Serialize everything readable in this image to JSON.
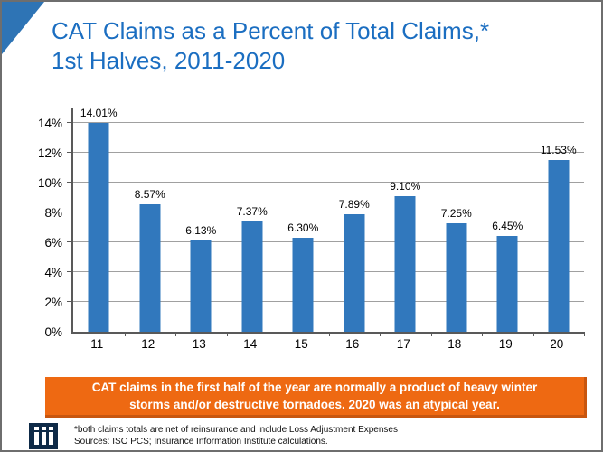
{
  "title": {
    "line1": "CAT Claims as a Percent of Total Claims,*",
    "line2": "1st Halves, 2011-2020"
  },
  "chart_data": {
    "type": "bar",
    "title": "CAT Claims as a Percent of Total Claims,* 1st Halves, 2011-2020",
    "categories": [
      "11",
      "12",
      "13",
      "14",
      "15",
      "16",
      "17",
      "18",
      "19",
      "20"
    ],
    "values": [
      14.01,
      8.57,
      6.13,
      7.37,
      6.3,
      7.89,
      9.1,
      7.25,
      6.45,
      11.53
    ],
    "labels": [
      "14.01%",
      "8.57%",
      "6.13%",
      "7.37%",
      "6.30%",
      "7.89%",
      "9.10%",
      "7.25%",
      "6.45%",
      "11.53%"
    ],
    "xlabel": "",
    "ylabel": "",
    "ylim": [
      0,
      14
    ],
    "grid": true,
    "legend": false,
    "yticks": [
      {
        "value": 0,
        "label": "0%"
      },
      {
        "value": 2,
        "label": "2%"
      },
      {
        "value": 4,
        "label": "4%"
      },
      {
        "value": 6,
        "label": "6%"
      },
      {
        "value": 8,
        "label": "8%"
      },
      {
        "value": 10,
        "label": "10%"
      },
      {
        "value": 12,
        "label": "12%"
      },
      {
        "value": 14,
        "label": "14%"
      }
    ]
  },
  "banner": {
    "line1": "CAT claims in the first half of the year are normally a product of heavy winter",
    "line2": "storms and/or destructive tornadoes. 2020 was an atypical year."
  },
  "footer": {
    "note": "*both claims totals are net of reinsurance and include Loss Adjustment Expenses",
    "sources": "Sources: ISO PCS; Insurance Information Institute calculations."
  },
  "logo": {
    "name": "Insurance Information Institute",
    "glyphs": "iii"
  },
  "colors": {
    "bar": "#3178BD",
    "title": "#1B6EC1",
    "banner": "#EE6912",
    "logo_bg": "#0E2A47",
    "gridline": "#A0A0A0",
    "axis": "#595959"
  }
}
